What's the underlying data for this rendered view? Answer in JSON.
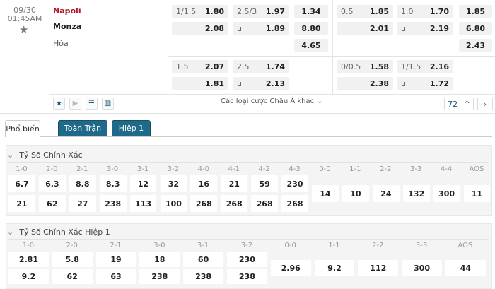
{
  "match": {
    "date": "09/30",
    "time": "01:45AM",
    "home": "Napoli",
    "away": "Monza",
    "draw": "Hòa"
  },
  "odds": {
    "ft": {
      "hdp": {
        "line": "1/1.5",
        "home": "1.80",
        "away": "2.08"
      },
      "ou": {
        "line": "2.5/3",
        "over": "1.97",
        "u": "u",
        "under": "1.89"
      },
      "x12": [
        "1.34",
        "8.80",
        "4.65"
      ]
    },
    "ft2": {
      "hdp": {
        "line": "1.5",
        "home": "2.07",
        "away": "1.81"
      },
      "ou": {
        "line": "2.5",
        "over": "1.74",
        "u": "u",
        "under": "2.13"
      }
    },
    "h1": {
      "hdp": {
        "line": "0.5",
        "home": "1.85",
        "away": "2.01"
      },
      "ou": {
        "line": "1.0",
        "over": "1.70",
        "u": "u",
        "under": "2.19"
      },
      "x12": [
        "1.85",
        "6.80",
        "2.43"
      ]
    },
    "h12": {
      "hdp": {
        "line": "0/0.5",
        "home": "1.58",
        "away": "2.38"
      },
      "ou": {
        "line": "1/1.5",
        "over": "2.16",
        "u": "u",
        "under": "1.72"
      }
    }
  },
  "footer": {
    "more_label": "Các loại cược Châu Á khác",
    "count": "72"
  },
  "tabs": [
    "Phổ biến",
    "Toàn Trận",
    "Hiệp 1"
  ],
  "section1": {
    "title": "Tỷ Số Chính Xác",
    "labels": [
      "1-0",
      "2-0",
      "2-1",
      "3-0",
      "3-1",
      "3-2",
      "4-0",
      "4-1",
      "4-2",
      "4-3"
    ],
    "home": [
      "6.7",
      "6.3",
      "8.8",
      "8.3",
      "12",
      "32",
      "16",
      "21",
      "59",
      "230"
    ],
    "away": [
      "21",
      "62",
      "27",
      "238",
      "113",
      "100",
      "268",
      "268",
      "268",
      "268"
    ],
    "draw_labels": [
      "0-0",
      "1-1",
      "2-2",
      "3-3",
      "4-4",
      "AOS"
    ],
    "draw": [
      "14",
      "10",
      "24",
      "132",
      "300",
      "11"
    ]
  },
  "section2": {
    "title": "Tỷ Số Chính Xác Hiệp 1",
    "labels": [
      "1-0",
      "2-0",
      "2-1",
      "3-0",
      "3-1",
      "3-2"
    ],
    "home": [
      "2.81",
      "5.8",
      "19",
      "18",
      "60",
      "230"
    ],
    "away": [
      "9.2",
      "62",
      "63",
      "238",
      "238",
      "238"
    ],
    "draw_labels": [
      "0-0",
      "1-1",
      "2-2",
      "3-3",
      "AOS"
    ],
    "draw": [
      "2.96",
      "9.2",
      "112",
      "300",
      "44"
    ]
  }
}
